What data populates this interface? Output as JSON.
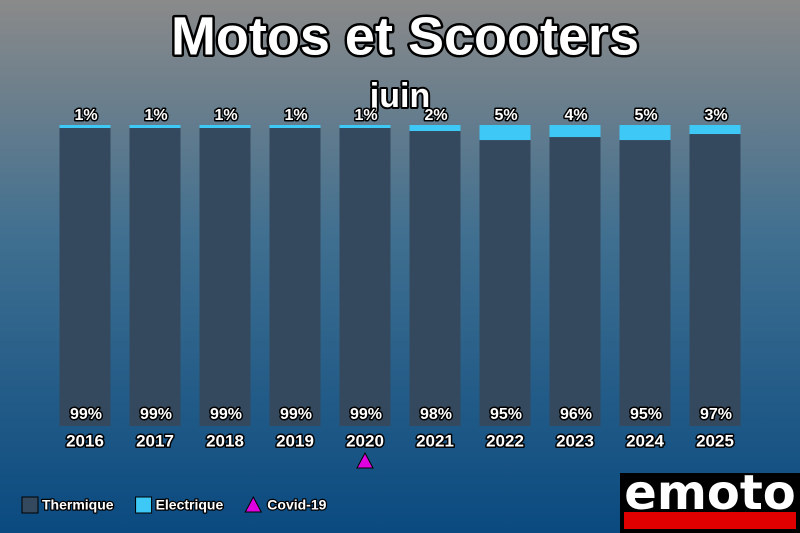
{
  "chart_data": {
    "type": "stacked-bar",
    "title": "Motos et Scooters",
    "subtitle": "juin",
    "categories": [
      "2016",
      "2017",
      "2018",
      "2019",
      "2020",
      "2021",
      "2022",
      "2023",
      "2024",
      "2025"
    ],
    "series": [
      {
        "name": "Thermique",
        "color": "#34495e",
        "values": [
          99,
          99,
          99,
          99,
          99,
          98,
          95,
          96,
          95,
          97
        ],
        "value_labels": [
          "99%",
          "99%",
          "99%",
          "99%",
          "99%",
          "98%",
          "95%",
          "96%",
          "95%",
          "97%"
        ]
      },
      {
        "name": "Electrique",
        "color": "#3ec8f5",
        "values": [
          1,
          1,
          1,
          1,
          1,
          2,
          5,
          4,
          5,
          3
        ],
        "value_labels": [
          "1%",
          "1%",
          "1%",
          "1%",
          "1%",
          "2%",
          "5%",
          "4%",
          "5%",
          "3%"
        ]
      }
    ],
    "annotations": [
      {
        "category": "2020",
        "label": "Covid-19",
        "color": "#e000e0"
      }
    ],
    "logo": "emoto"
  }
}
